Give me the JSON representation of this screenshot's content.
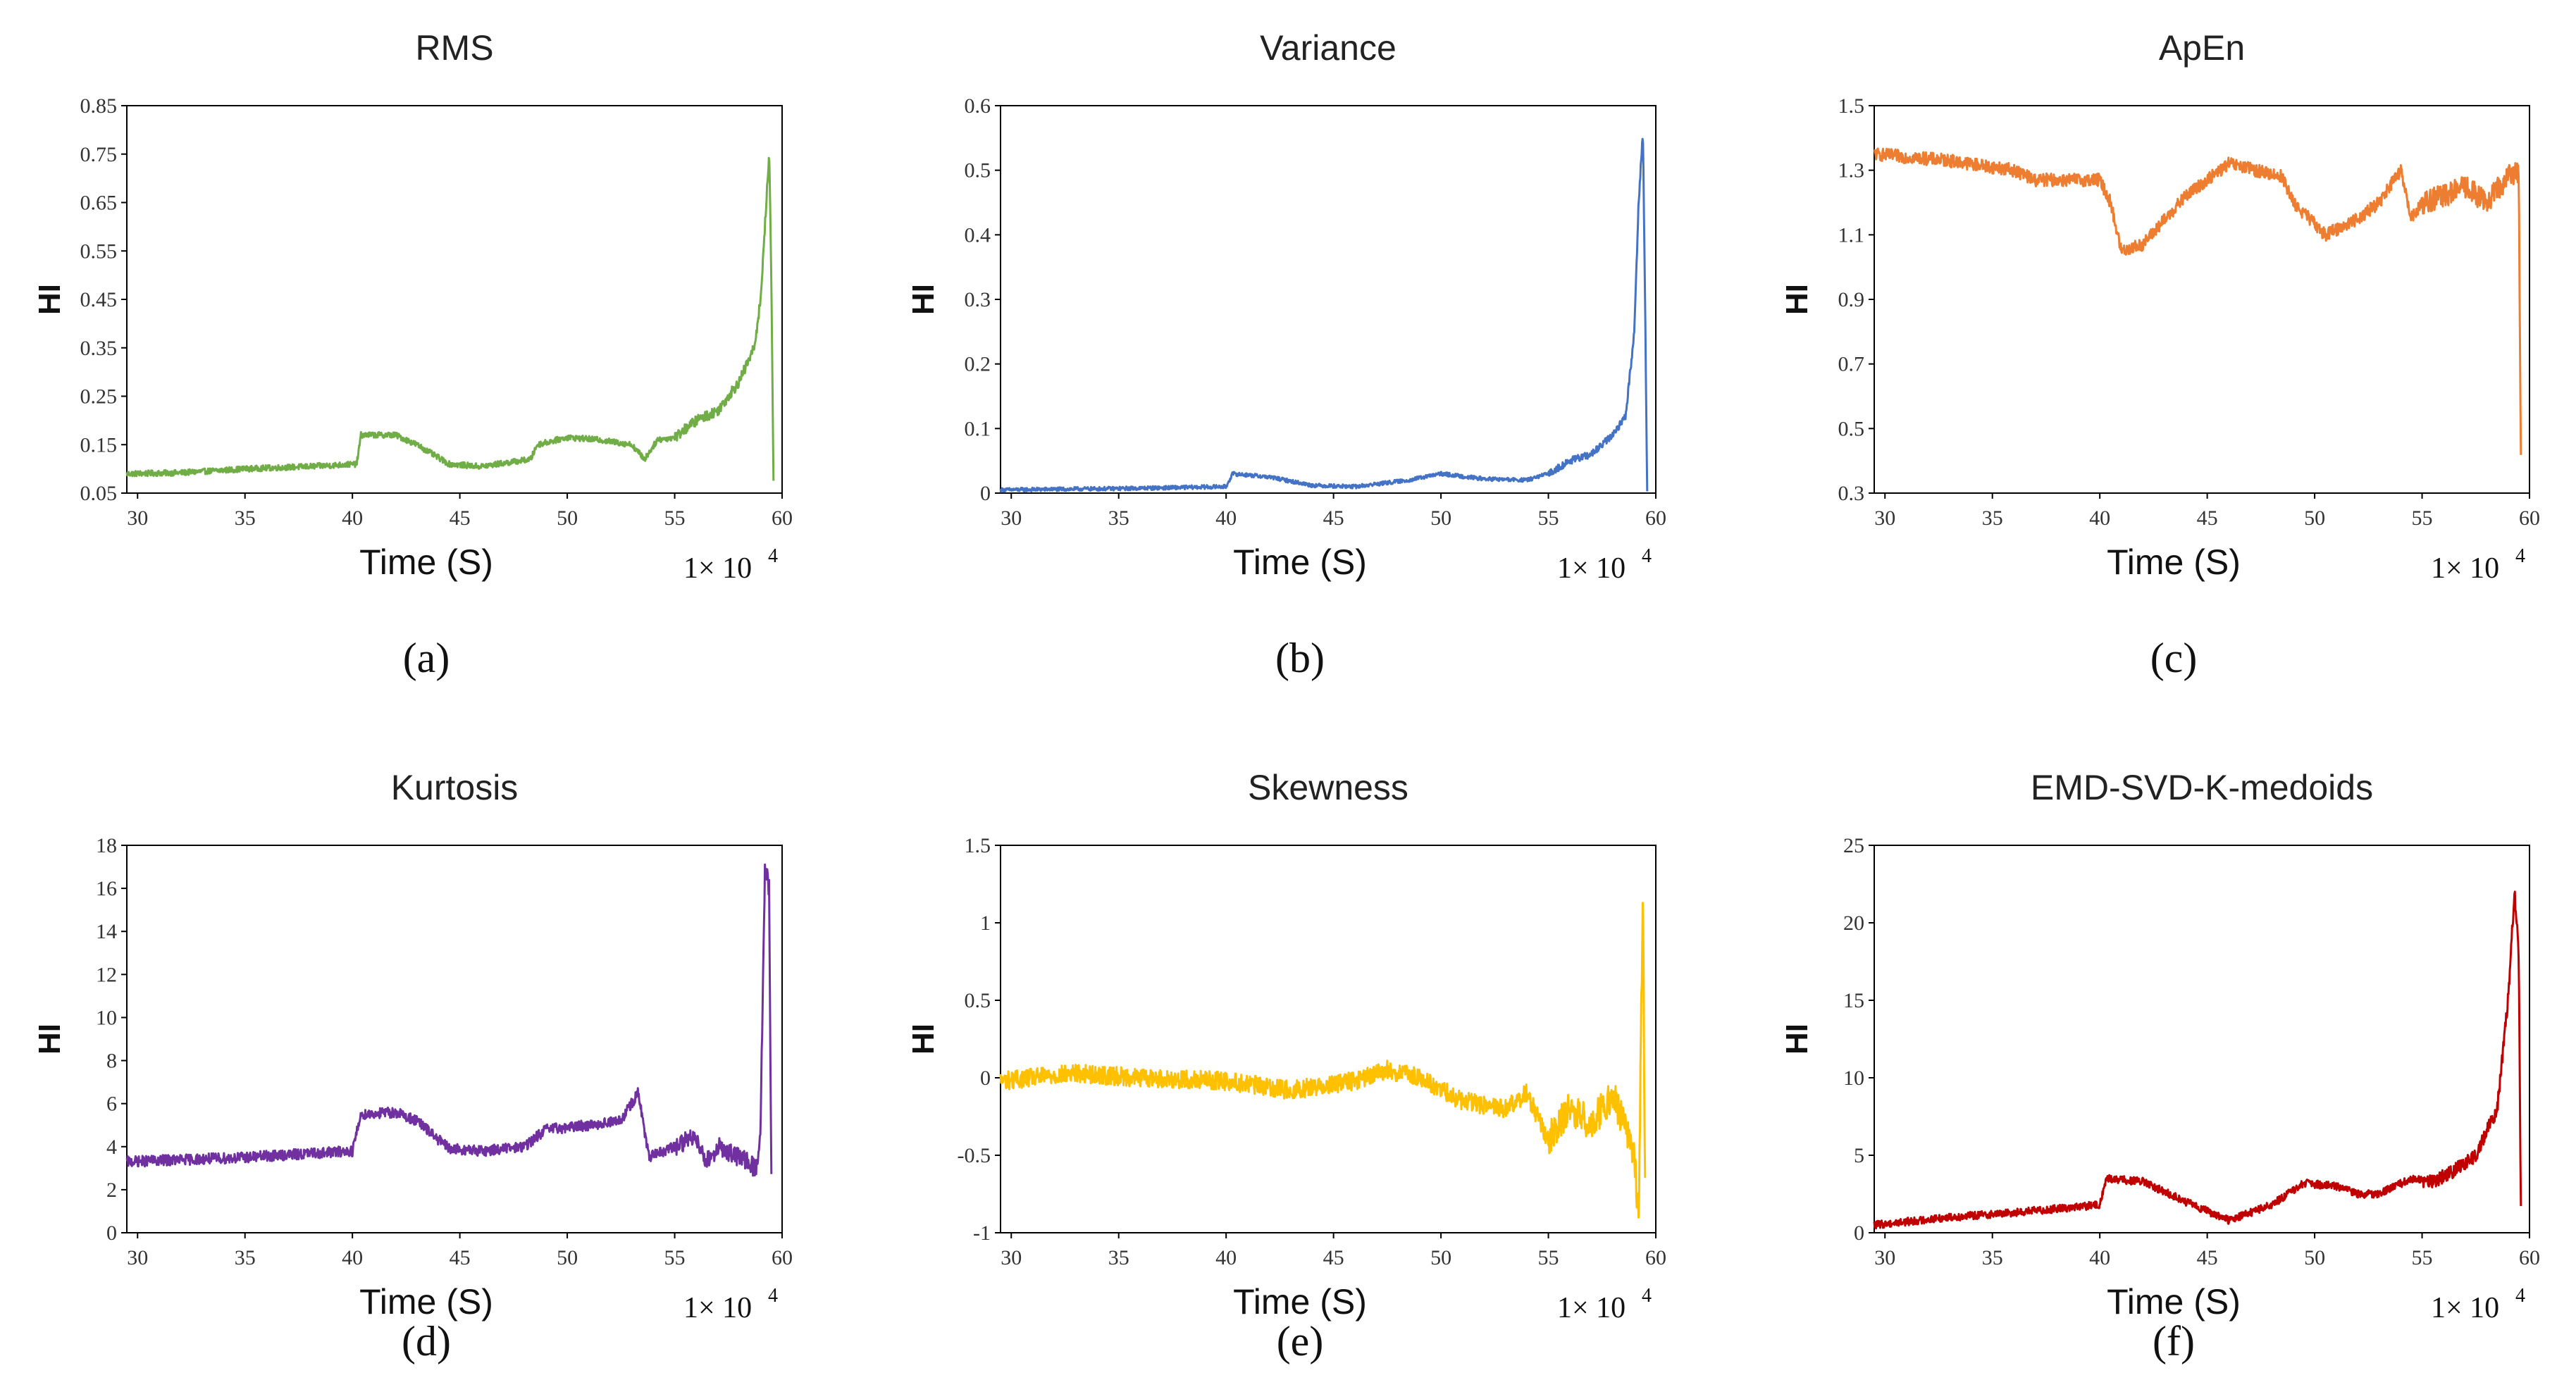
{
  "chart_data": [
    {
      "id": "a",
      "type": "line",
      "title": "RMS",
      "caption": "(a)",
      "xlabel": "Time (S)",
      "ylabel": "HI",
      "x_scale_label": "1× 10",
      "x_scale_exp": "4",
      "color": "#70AD47",
      "xlim": [
        29.5,
        60
      ],
      "ylim": [
        0.05,
        0.85
      ],
      "xticks": [
        "30",
        "35",
        "40",
        "45",
        "50",
        "55",
        "60"
      ],
      "yticks": [
        "0.85",
        "0.75",
        "0.65",
        "0.55",
        "0.45",
        "0.35",
        "0.25",
        "0.15",
        "0.05"
      ],
      "series": [
        {
          "name": "RMS",
          "noise": 0.006,
          "points": [
            [
              29.5,
              0.09
            ],
            [
              32,
              0.092
            ],
            [
              35,
              0.1
            ],
            [
              38,
              0.105
            ],
            [
              40.2,
              0.11
            ],
            [
              40.4,
              0.17
            ],
            [
              42,
              0.17
            ],
            [
              43,
              0.15
            ],
            [
              44.5,
              0.11
            ],
            [
              46,
              0.105
            ],
            [
              48.3,
              0.12
            ],
            [
              48.6,
              0.15
            ],
            [
              50,
              0.165
            ],
            [
              51.5,
              0.16
            ],
            [
              53,
              0.15
            ],
            [
              53.6,
              0.12
            ],
            [
              54.2,
              0.16
            ],
            [
              55,
              0.165
            ],
            [
              56,
              0.2
            ],
            [
              57,
              0.22
            ],
            [
              58,
              0.28
            ],
            [
              58.7,
              0.35
            ],
            [
              59,
              0.45
            ],
            [
              59.2,
              0.6
            ],
            [
              59.4,
              0.75
            ],
            [
              59.5,
              0.5
            ],
            [
              59.6,
              0.07
            ]
          ]
        }
      ]
    },
    {
      "id": "b",
      "type": "line",
      "title": "Variance",
      "caption": "(b)",
      "xlabel": "Time (S)",
      "ylabel": "HI",
      "x_scale_label": "1× 10",
      "x_scale_exp": "4",
      "color": "#4472C4",
      "xlim": [
        29.5,
        60
      ],
      "ylim": [
        0,
        0.6
      ],
      "xticks": [
        "30",
        "35",
        "40",
        "45",
        "50",
        "55",
        "60"
      ],
      "yticks": [
        "0.6",
        "0.5",
        "0.4",
        "0.3",
        "0.2",
        "0.1",
        "0"
      ],
      "series": [
        {
          "name": "Variance",
          "noise": 0.003,
          "points": [
            [
              29.5,
              0.005
            ],
            [
              35,
              0.007
            ],
            [
              40,
              0.01
            ],
            [
              40.3,
              0.03
            ],
            [
              42,
              0.025
            ],
            [
              44,
              0.012
            ],
            [
              46,
              0.01
            ],
            [
              48.5,
              0.02
            ],
            [
              50,
              0.03
            ],
            [
              52,
              0.022
            ],
            [
              54,
              0.02
            ],
            [
              55,
              0.03
            ],
            [
              56,
              0.05
            ],
            [
              57,
              0.06
            ],
            [
              58,
              0.09
            ],
            [
              58.6,
              0.12
            ],
            [
              59,
              0.25
            ],
            [
              59.2,
              0.45
            ],
            [
              59.4,
              0.56
            ],
            [
              59.5,
              0.3
            ],
            [
              59.6,
              0.0
            ]
          ]
        }
      ]
    },
    {
      "id": "c",
      "type": "line",
      "title": "ApEn",
      "caption": "(c)",
      "xlabel": "Time (S)",
      "ylabel": "HI",
      "x_scale_label": "1× 10",
      "x_scale_exp": "4",
      "color": "#ED7D31",
      "xlim": [
        29.5,
        60
      ],
      "ylim": [
        0.3,
        1.5
      ],
      "xticks": [
        "30",
        "35",
        "40",
        "45",
        "50",
        "55",
        "60"
      ],
      "yticks": [
        "1.5",
        "1.3",
        "1.1",
        "0.9",
        "0.7",
        "0.5",
        "0.3"
      ],
      "series": [
        {
          "name": "ApEn",
          "noise": 0.02,
          "points": [
            [
              29.5,
              1.35
            ],
            [
              33,
              1.33
            ],
            [
              36,
              1.3
            ],
            [
              37,
              1.27
            ],
            [
              40,
              1.27
            ],
            [
              40.5,
              1.2
            ],
            [
              41,
              1.05
            ],
            [
              42,
              1.07
            ],
            [
              44,
              1.22
            ],
            [
              46,
              1.32
            ],
            [
              48.5,
              1.28
            ],
            [
              49,
              1.2
            ],
            [
              50.5,
              1.1
            ],
            [
              52,
              1.15
            ],
            [
              53,
              1.2
            ],
            [
              54,
              1.3
            ],
            [
              54.5,
              1.15
            ],
            [
              55,
              1.2
            ],
            [
              56,
              1.22
            ],
            [
              57,
              1.25
            ],
            [
              58,
              1.2
            ],
            [
              59,
              1.28
            ],
            [
              59.5,
              1.3
            ],
            [
              59.6,
              0.4
            ]
          ]
        }
      ]
    },
    {
      "id": "d",
      "type": "line",
      "title": "Kurtosis",
      "caption": "(d)",
      "xlabel": "Time (S)",
      "ylabel": "HI",
      "x_scale_label": "1× 10",
      "x_scale_exp": "4",
      "color": "#7030A0",
      "xlim": [
        29.5,
        60
      ],
      "ylim": [
        0,
        18
      ],
      "xticks": [
        "30",
        "35",
        "40",
        "45",
        "50",
        "55",
        "60"
      ],
      "yticks": [
        "18",
        "16",
        "14",
        "12",
        "10",
        "8",
        "6",
        "4",
        "2",
        "0"
      ],
      "series": [
        {
          "name": "Kurtosis",
          "noise": 0.25,
          "points": [
            [
              29.5,
              3.3
            ],
            [
              35,
              3.5
            ],
            [
              40,
              3.8
            ],
            [
              40.4,
              5.5
            ],
            [
              42,
              5.6
            ],
            [
              43,
              5.2
            ],
            [
              44.5,
              3.9
            ],
            [
              46,
              3.8
            ],
            [
              48,
              4
            ],
            [
              49,
              4.8
            ],
            [
              51,
              5
            ],
            [
              52.5,
              5.2
            ],
            [
              53.3,
              6.5
            ],
            [
              53.8,
              3.5
            ],
            [
              55,
              4
            ],
            [
              56,
              4.5
            ],
            [
              56.5,
              3.3
            ],
            [
              57,
              4
            ],
            [
              58,
              3.5
            ],
            [
              58.8,
              3
            ],
            [
              59,
              5
            ],
            [
              59.2,
              17
            ],
            [
              59.4,
              16
            ],
            [
              59.5,
              2.5
            ]
          ]
        }
      ]
    },
    {
      "id": "e",
      "type": "line",
      "title": "Skewness",
      "caption": "(e)",
      "xlabel": "Time (S)",
      "ylabel": "HI",
      "x_scale_label": "1× 10",
      "x_scale_exp": "4",
      "color": "#FFC000",
      "xlim": [
        29.5,
        60
      ],
      "ylim": [
        -1,
        1.5
      ],
      "xticks": [
        "30",
        "35",
        "40",
        "45",
        "50",
        "55",
        "60"
      ],
      "yticks": [
        "1.5",
        "1",
        "0.5",
        "0",
        "-0.5",
        "-1"
      ],
      "series": [
        {
          "name": "Skewness",
          "noise": 0.06,
          "points": [
            [
              29.5,
              -0.02
            ],
            [
              33,
              0.03
            ],
            [
              36,
              0.0
            ],
            [
              40,
              -0.02
            ],
            [
              43,
              -0.08
            ],
            [
              46,
              -0.02
            ],
            [
              47.5,
              0.05
            ],
            [
              49,
              0.0
            ],
            [
              51,
              -0.15
            ],
            [
              53,
              -0.2
            ],
            [
              54,
              -0.1
            ],
            [
              55,
              -0.4
            ],
            [
              56,
              -0.2
            ],
            [
              57,
              -0.3
            ],
            [
              58,
              -0.1
            ],
            [
              59,
              -0.5
            ],
            [
              59.2,
              -0.9
            ],
            [
              59.4,
              1.2
            ],
            [
              59.5,
              -0.7
            ]
          ]
        }
      ]
    },
    {
      "id": "f",
      "type": "line",
      "title": "EMD-SVD-K-medoids",
      "caption": "(f)",
      "xlabel": "Time (S)",
      "ylabel": "HI",
      "x_scale_label": "1× 10",
      "x_scale_exp": "4",
      "color": "#C00000",
      "xlim": [
        29.5,
        60
      ],
      "ylim": [
        0,
        25
      ],
      "xticks": [
        "30",
        "35",
        "40",
        "45",
        "50",
        "55",
        "60"
      ],
      "yticks": [
        "25",
        "20",
        "15",
        "10",
        "5",
        "0"
      ],
      "series": [
        {
          "name": "EMD-SVD-K-medoids",
          "noise": 0.25,
          "points": [
            [
              29.5,
              0.5
            ],
            [
              33,
              1
            ],
            [
              36,
              1.3
            ],
            [
              40,
              1.8
            ],
            [
              40.3,
              3.5
            ],
            [
              42,
              3.3
            ],
            [
              44,
              2
            ],
            [
              46,
              0.8
            ],
            [
              48,
              1.8
            ],
            [
              49.5,
              3.2
            ],
            [
              51,
              3
            ],
            [
              52,
              2.5
            ],
            [
              53,
              2.5
            ],
            [
              54.5,
              3.5
            ],
            [
              55.5,
              3.3
            ],
            [
              56.5,
              4
            ],
            [
              57.5,
              5
            ],
            [
              58.5,
              8
            ],
            [
              59,
              15
            ],
            [
              59.3,
              22
            ],
            [
              59.5,
              18
            ],
            [
              59.6,
              1.5
            ]
          ]
        }
      ]
    }
  ]
}
